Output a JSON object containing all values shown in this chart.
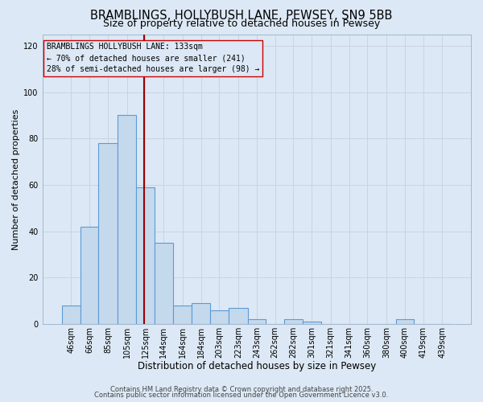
{
  "title": "BRAMBLINGS, HOLLYBUSH LANE, PEWSEY, SN9 5BB",
  "subtitle": "Size of property relative to detached houses in Pewsey",
  "xlabel": "Distribution of detached houses by size in Pewsey",
  "ylabel": "Number of detached properties",
  "categories": [
    "46sqm",
    "66sqm",
    "85sqm",
    "105sqm",
    "125sqm",
    "144sqm",
    "164sqm",
    "184sqm",
    "203sqm",
    "223sqm",
    "243sqm",
    "262sqm",
    "282sqm",
    "301sqm",
    "321sqm",
    "341sqm",
    "360sqm",
    "380sqm",
    "400sqm",
    "419sqm",
    "439sqm"
  ],
  "bar_edges": [
    46,
    66,
    85,
    105,
    125,
    144,
    164,
    184,
    203,
    223,
    243,
    262,
    282,
    301,
    321,
    341,
    360,
    380,
    400,
    419,
    439,
    459
  ],
  "bar_heights": [
    8,
    42,
    78,
    90,
    59,
    35,
    8,
    9,
    6,
    7,
    2,
    0,
    2,
    1,
    0,
    0,
    0,
    0,
    2,
    0,
    0
  ],
  "bar_color": "#c5d9ed",
  "bar_edgecolor": "#5b9bd5",
  "vline_x": 133,
  "vline_color": "#990000",
  "ylim": [
    0,
    125
  ],
  "yticks": [
    0,
    20,
    40,
    60,
    80,
    100,
    120
  ],
  "grid_color": "#c8d4e0",
  "bg_color": "#dce8f5",
  "annotation_title": "BRAMBLINGS HOLLYBUSH LANE: 133sqm",
  "annotation_line1": "← 70% of detached houses are smaller (241)",
  "annotation_line2": "28% of semi-detached houses are larger (98) →",
  "annotation_box_edgecolor": "#cc0000",
  "footer1": "Contains HM Land Registry data © Crown copyright and database right 2025.",
  "footer2": "Contains public sector information licensed under the Open Government Licence v3.0.",
  "title_fontsize": 10.5,
  "subtitle_fontsize": 9,
  "xlabel_fontsize": 8.5,
  "ylabel_fontsize": 8,
  "tick_fontsize": 7,
  "annotation_fontsize": 7,
  "footer_fontsize": 6
}
